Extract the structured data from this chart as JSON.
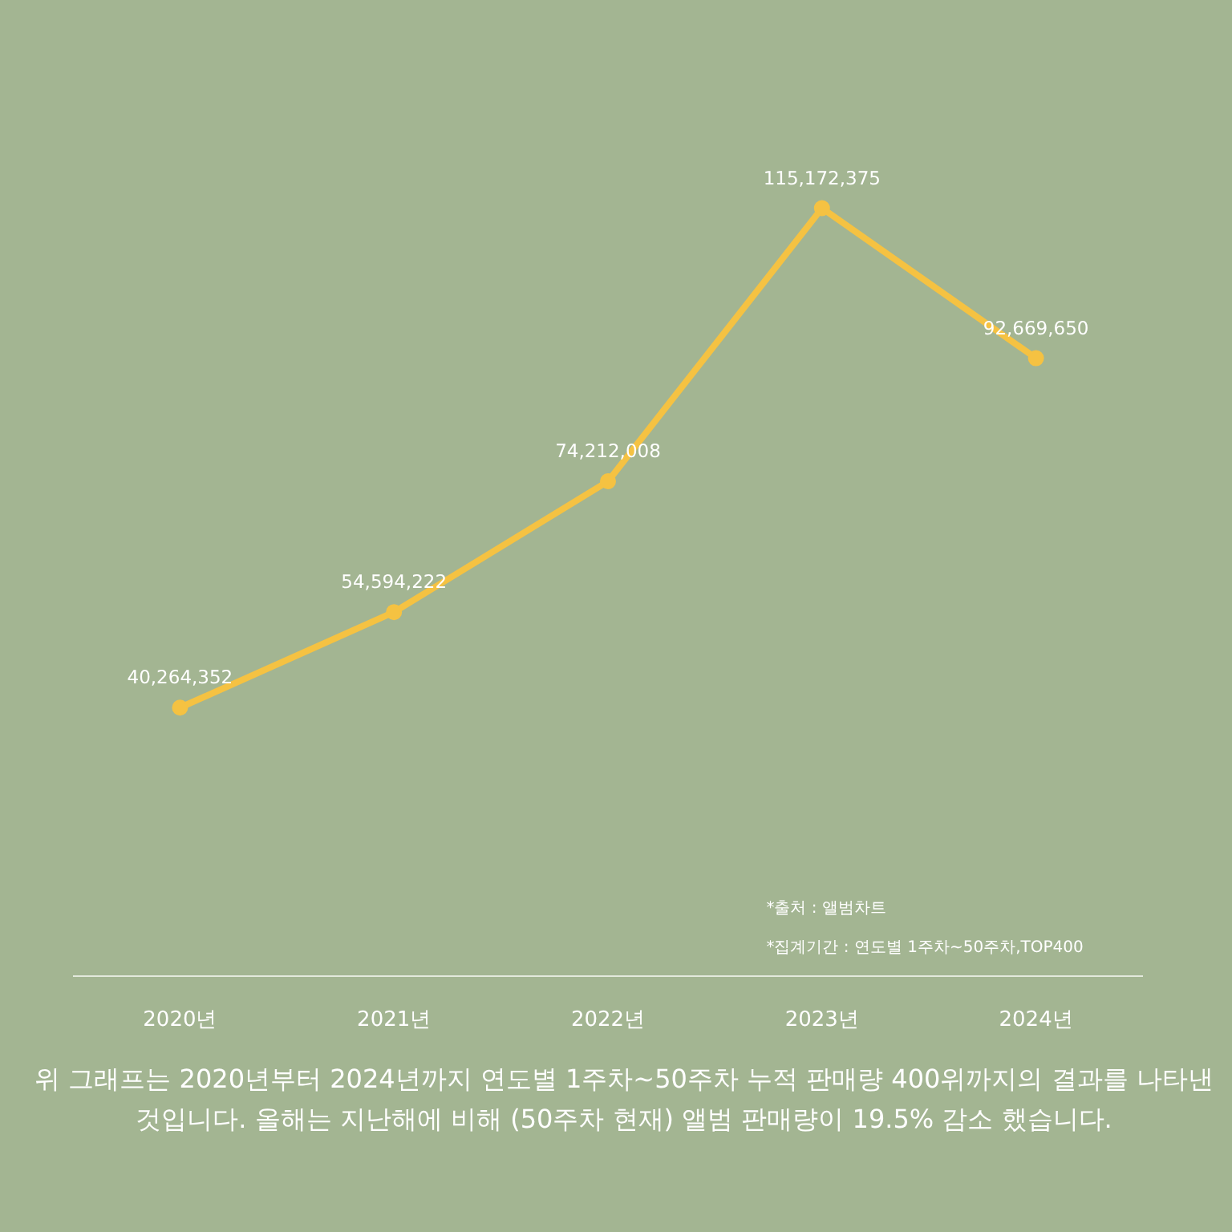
{
  "chart_data": {
    "type": "line",
    "categories": [
      "2020년",
      "2021년",
      "2022년",
      "2023년",
      "2024년"
    ],
    "series": [
      {
        "color": "#f5c242",
        "values": [
          40264352,
          54594222,
          74212008,
          115172375,
          92669650
        ],
        "value_labels": [
          "40,264,352",
          "54,594,222",
          "74,212,008",
          "115,172,375",
          "92,669,650"
        ]
      }
    ],
    "marker": "circle",
    "annotations": [
      "*출처 : 앨범차트",
      "*집계기간 : 연도별 1주차~50주차,TOP400",
      "위 그래프는 2020년부터 2024년까지 연도별 1주차~50주차 누적 판매량 400위까지의 결과를 나타낸 것입니다. 올해는 지난해에 비해 (50주차 현재) 앨범 판매량이 19.5% 감소 했습니다."
    ]
  }
}
